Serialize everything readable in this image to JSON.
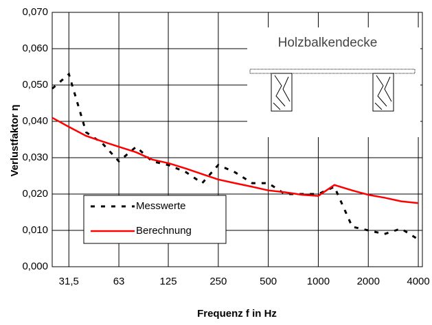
{
  "chart_data": {
    "type": "line",
    "annotation": "Holzbalkendecke",
    "x_label": "Frequenz f in Hz",
    "y_label": "Verlustfaktor η",
    "x": [
      25,
      31.5,
      40,
      50,
      63,
      80,
      100,
      125,
      160,
      200,
      250,
      315,
      400,
      500,
      630,
      800,
      1000,
      1250,
      1600,
      2000,
      2500,
      3150,
      4000
    ],
    "series": [
      {
        "name": "Messwerte",
        "color": "#000000",
        "dash": true,
        "values": [
          0.049,
          0.053,
          0.037,
          0.034,
          0.029,
          0.033,
          0.029,
          0.028,
          0.026,
          0.023,
          0.028,
          0.026,
          0.023,
          0.023,
          0.02,
          0.02,
          0.02,
          0.022,
          0.011,
          0.01,
          0.009,
          0.0105,
          0.0075
        ]
      },
      {
        "name": "Berechnung",
        "color": "#ff0000",
        "dash": false,
        "values": [
          0.041,
          0.0385,
          0.036,
          0.0345,
          0.033,
          0.0315,
          0.0295,
          0.0285,
          0.027,
          0.0255,
          0.024,
          0.023,
          0.022,
          0.021,
          0.0205,
          0.0198,
          0.0195,
          0.0225,
          0.021,
          0.0198,
          0.019,
          0.018,
          0.0175
        ]
      }
    ],
    "log_x": true,
    "xlim": [
      25,
      4233
    ],
    "xticks": [
      {
        "value": 31.5,
        "label": "31,5"
      },
      63,
      125,
      250,
      500,
      1000,
      2000,
      4000
    ],
    "ylim": [
      0,
      0.07
    ],
    "yticks": [
      {
        "value": 0,
        "label": "0,000"
      },
      {
        "value": 0.01,
        "label": "0,010"
      },
      {
        "value": 0.02,
        "label": "0,020"
      },
      {
        "value": 0.03,
        "label": "0,030"
      },
      {
        "value": 0.04,
        "label": "0,040"
      },
      {
        "value": 0.05,
        "label": "0,050"
      },
      {
        "value": 0.06,
        "label": "0,060"
      },
      {
        "value": 0.07,
        "label": "0,070"
      }
    ],
    "grid": true,
    "legend": "lower-left"
  }
}
